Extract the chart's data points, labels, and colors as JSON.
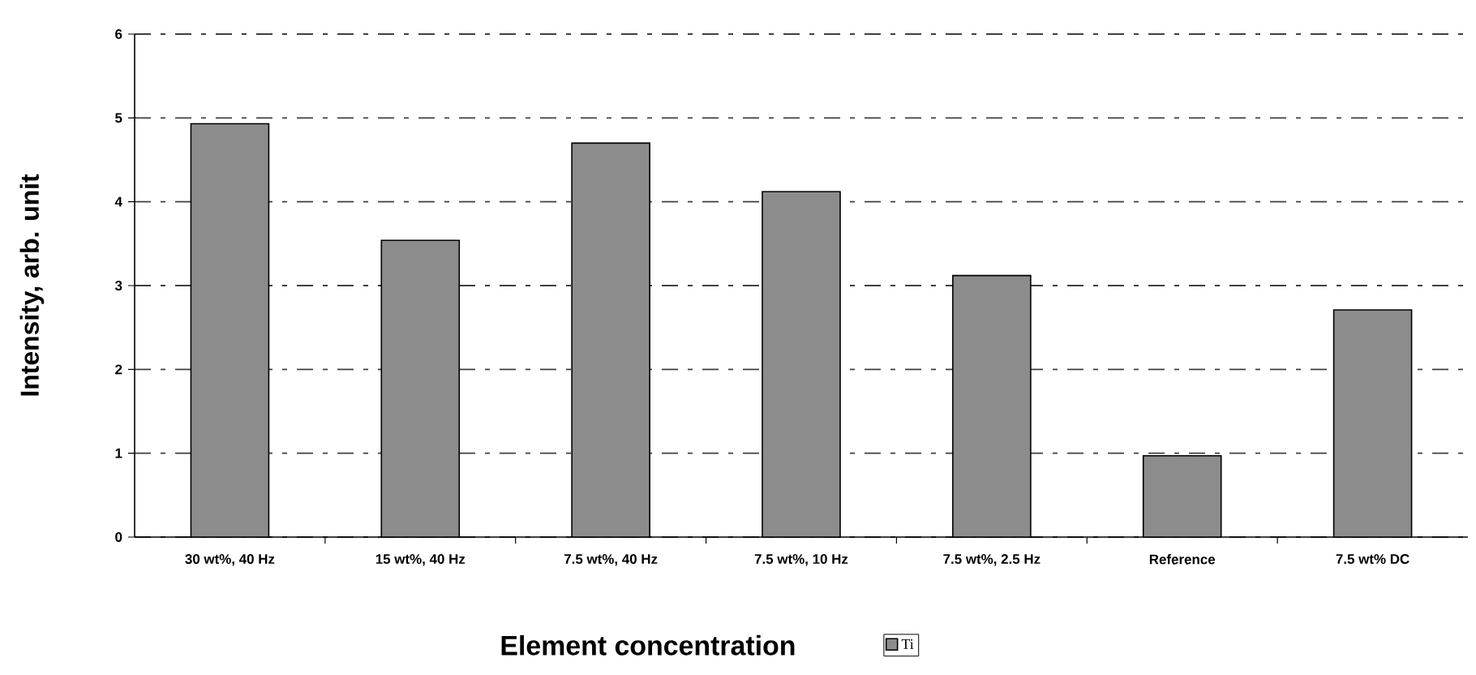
{
  "chart_data": {
    "type": "bar",
    "xlabel": "Element concentration",
    "ylabel": "Intensity, arb. unit",
    "categories": [
      "30 wt%, 40 Hz",
      "15 wt%, 40 Hz",
      "7.5 wt%, 40 Hz",
      "7.5 wt%, 10 Hz",
      "7.5 wt%, 2.5 Hz",
      "Reference",
      "7.5 wt% DC"
    ],
    "series": [
      {
        "name": "Ti",
        "color": "#8c8c8c",
        "values": [
          4.93,
          3.54,
          4.7,
          4.12,
          3.12,
          0.97,
          2.71
        ]
      }
    ],
    "ylim": [
      0,
      6
    ],
    "yticks": [
      0,
      1,
      2,
      3,
      4,
      5,
      6
    ],
    "grid": "y",
    "legend": "bottom"
  }
}
